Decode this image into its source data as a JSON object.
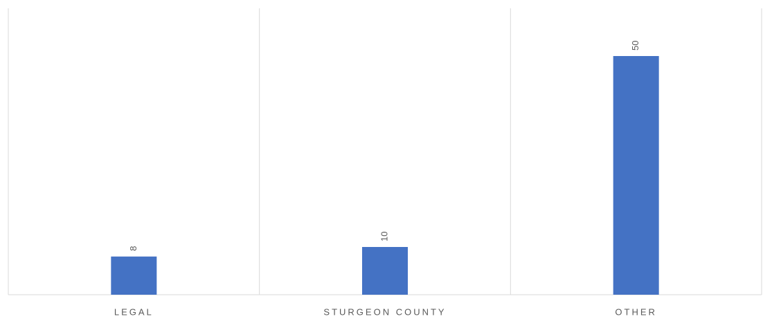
{
  "chart_data": {
    "type": "bar",
    "categories": [
      "LEGAL",
      "STURGEON COUNTY",
      "OTHER"
    ],
    "values": [
      8,
      10,
      50
    ],
    "color": "#4472c4",
    "ylim": [
      0,
      60
    ],
    "grid": false
  }
}
